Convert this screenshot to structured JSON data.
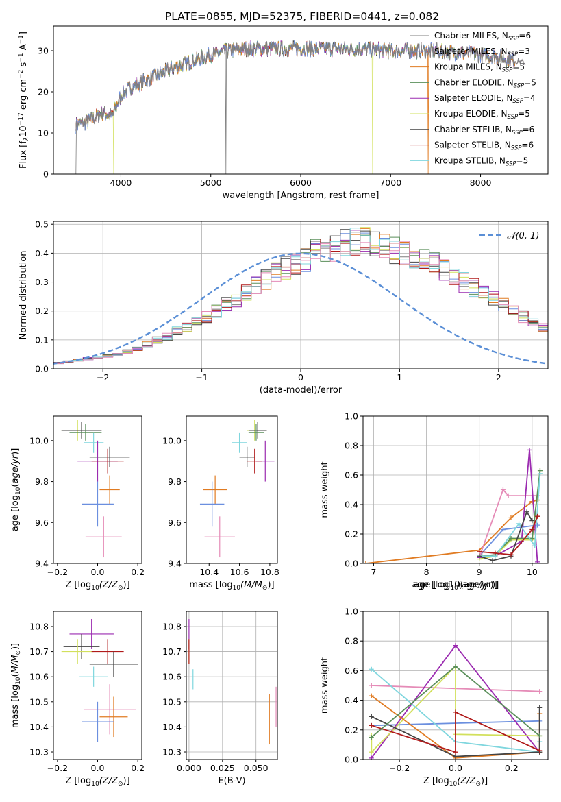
{
  "figure_title": "PLATE=0855, MJD=52375, FIBERID=0441, z=0.082",
  "colors": {
    "Chabrier MILES": "#7f7f7f",
    "Salpeter MILES": "#6b8fdf",
    "Kroupa MILES": "#e07b22",
    "Chabrier ELODIE": "#5a8f5a",
    "Salpeter ELODIE": "#9b2bb0",
    "Kroupa ELODIE": "#d2e05c",
    "Chabrier STELIB": "#444444",
    "Salpeter STELIB": "#b01a1a",
    "Kroupa STELIB": "#7fd6de",
    "pink": "#e58bb7",
    "gauss": "#5b8fd6"
  },
  "chart_data": [
    {
      "id": "spectrum",
      "type": "line",
      "xlabel": "wavelength [Angstrom, rest frame]",
      "ylabel": "Flux [f$_\\lambda$10$^{-17}$ erg cm$^{-2}$ s$^{-1}$ A$^{-1}$]",
      "ylabel_parts": [
        "Flux [f",
        "λ",
        "10",
        "−17",
        " erg cm",
        "−2",
        " s",
        "−1",
        " A",
        "−1",
        "]"
      ],
      "xlim": [
        3250,
        8750
      ],
      "ylim": [
        0,
        36
      ],
      "xticks": [
        4000,
        5000,
        6000,
        7000,
        8000
      ],
      "yticks": [
        0,
        10,
        20,
        30
      ],
      "legend_position": "upper-right",
      "legend": [
        {
          "name": "Chabrier MILES",
          "nssp": "6"
        },
        {
          "name": "Salpeter MILES",
          "nssp": "3"
        },
        {
          "name": "Kroupa MILES",
          "nssp": "5"
        },
        {
          "name": "Chabrier ELODIE",
          "nssp": "5"
        },
        {
          "name": "Salpeter ELODIE",
          "nssp": "4"
        },
        {
          "name": "Kroupa ELODIE",
          "nssp": "5"
        },
        {
          "name": "Chabrier STELIB",
          "nssp": "6"
        },
        {
          "name": "Salpeter STELIB",
          "nssp": "6"
        },
        {
          "name": "Kroupa STELIB",
          "nssp": "5"
        }
      ],
      "continuum_x": [
        3500,
        3600,
        3700,
        3800,
        3900,
        4000,
        4100,
        4200,
        4300,
        4400,
        4600,
        4800,
        5000,
        5200,
        5400,
        5600,
        5800,
        6000,
        6200,
        6400,
        6600,
        6800,
        7000,
        7200,
        7400,
        7600,
        7800,
        8000,
        8200,
        8400,
        8500
      ],
      "continuum_y": [
        12,
        12.5,
        13.5,
        15,
        14,
        19,
        21,
        22,
        23,
        24,
        26,
        27.5,
        29,
        30,
        30.5,
        30.5,
        30.5,
        30.5,
        30.5,
        30.5,
        30.5,
        30.3,
        30,
        30,
        30,
        29.8,
        29.5,
        29,
        28.5,
        27.5,
        27
      ],
      "noise_amplitude": 1.6,
      "dropouts": [
        {
          "x": 3500,
          "series": "Chabrier MILES"
        },
        {
          "x": 3920,
          "series": "Kroupa ELODIE"
        },
        {
          "x": 5170,
          "series": "Chabrier MILES"
        },
        {
          "x": 6800,
          "series": "Kroupa ELODIE"
        },
        {
          "x": 7420,
          "series": "Kroupa MILES"
        }
      ]
    },
    {
      "id": "residual-hist",
      "type": "bar",
      "xlabel": "(data-model)/error",
      "ylabel": "Normed distribution",
      "xlim": [
        -2.5,
        2.5
      ],
      "ylim": [
        0,
        0.51
      ],
      "xticks": [
        -2,
        -1,
        0,
        1,
        2
      ],
      "yticks": [
        0.0,
        0.1,
        0.2,
        0.3,
        0.4,
        0.5
      ],
      "legend_label": "𝒩(0, 1)",
      "bin_width": 0.1,
      "bin_start": -2.5,
      "envelope": [
        0.02,
        0.025,
        0.03,
        0.035,
        0.04,
        0.045,
        0.05,
        0.06,
        0.07,
        0.085,
        0.1,
        0.11,
        0.13,
        0.145,
        0.165,
        0.18,
        0.2,
        0.22,
        0.24,
        0.26,
        0.29,
        0.31,
        0.33,
        0.35,
        0.36,
        0.38,
        0.4,
        0.41,
        0.42,
        0.44,
        0.44,
        0.44,
        0.43,
        0.42,
        0.41,
        0.4,
        0.39,
        0.37,
        0.36,
        0.34,
        0.32,
        0.3,
        0.28,
        0.26,
        0.24,
        0.22,
        0.2,
        0.18,
        0.16,
        0.14,
        0.12,
        0.11,
        0.09,
        0.08,
        0.07,
        0.06,
        0.05,
        0.045,
        0.04,
        0.035
      ],
      "gauss": {
        "mean": 0,
        "sigma": 1
      }
    },
    {
      "id": "z-age",
      "type": "scatter",
      "xlabel_prefix": "Z [log",
      "xlabel_sub": "10",
      "xlabel_mid": "(Z/Z",
      "xlabel_sub2": "⊙",
      "xlabel_suffix": ")]",
      "ylabel": "age  [log10(age/yr)]",
      "xlim": [
        -0.22,
        0.22
      ],
      "ylim": [
        9.4,
        10.12
      ],
      "xticks": [
        -0.2,
        0.0,
        0.2
      ],
      "yticks": [
        9.4,
        9.6,
        9.8,
        10.0
      ],
      "points": [
        {
          "series": "Kroupa ELODIE",
          "x": -0.1,
          "xerr": 0.08,
          "y": 10.05,
          "yerr": 0.05
        },
        {
          "series": "Chabrier STELIB",
          "x": -0.08,
          "xerr": 0.1,
          "y": 10.05,
          "yerr": 0.04
        },
        {
          "series": "Chabrier ELODIE",
          "x": -0.06,
          "xerr": 0.08,
          "y": 10.04,
          "yerr": 0.04
        },
        {
          "series": "Kroupa STELIB",
          "x": -0.02,
          "xerr": 0.05,
          "y": 9.99,
          "yerr": 0.05
        },
        {
          "series": "Chabrier STELIB",
          "x": 0.06,
          "xerr": 0.1,
          "y": 9.92,
          "yerr": 0.05
        },
        {
          "series": "Salpeter ELODIE",
          "x": 0.0,
          "xerr": 0.1,
          "y": 9.9,
          "yerr": 0.1
        },
        {
          "series": "Salpeter STELIB",
          "x": 0.05,
          "xerr": 0.08,
          "y": 9.9,
          "yerr": 0.06
        },
        {
          "series": "Kroupa MILES",
          "x": 0.06,
          "xerr": 0.05,
          "y": 9.76,
          "yerr": 0.07
        },
        {
          "series": "Salpeter MILES",
          "x": 0.0,
          "xerr": 0.08,
          "y": 9.69,
          "yerr": 0.11
        },
        {
          "series": "pink",
          "x": 0.03,
          "xerr": 0.09,
          "y": 9.53,
          "yerr": 0.1
        }
      ]
    },
    {
      "id": "mass-age",
      "type": "scatter",
      "xlabel_prefix": "mass [log",
      "xlabel_sub": "10",
      "xlabel_mid": "(M/M",
      "xlabel_sub2": "⊙",
      "xlabel_suffix": ")]",
      "xlim": [
        10.25,
        10.85
      ],
      "ylim": [
        9.4,
        10.12
      ],
      "xticks": [
        10.4,
        10.6,
        10.8
      ],
      "yticks": [
        9.4,
        9.6,
        9.8,
        10.0
      ],
      "points": [
        {
          "series": "Kroupa ELODIE",
          "x": 10.7,
          "xerr": 0.05,
          "y": 10.05,
          "yerr": 0.05
        },
        {
          "series": "Chabrier STELIB",
          "x": 10.72,
          "xerr": 0.06,
          "y": 10.05,
          "yerr": 0.04
        },
        {
          "series": "Chabrier ELODIE",
          "x": 10.71,
          "xerr": 0.05,
          "y": 10.04,
          "yerr": 0.04
        },
        {
          "series": "Kroupa STELIB",
          "x": 10.6,
          "xerr": 0.05,
          "y": 9.99,
          "yerr": 0.05
        },
        {
          "series": "Chabrier STELIB",
          "x": 10.65,
          "xerr": 0.05,
          "y": 9.92,
          "yerr": 0.05
        },
        {
          "series": "Salpeter ELODIE",
          "x": 10.77,
          "xerr": 0.06,
          "y": 9.9,
          "yerr": 0.1
        },
        {
          "series": "Salpeter STELIB",
          "x": 10.7,
          "xerr": 0.05,
          "y": 9.9,
          "yerr": 0.06
        },
        {
          "series": "Kroupa MILES",
          "x": 10.44,
          "xerr": 0.08,
          "y": 9.76,
          "yerr": 0.07
        },
        {
          "series": "Salpeter MILES",
          "x": 10.42,
          "xerr": 0.08,
          "y": 9.69,
          "yerr": 0.11
        },
        {
          "series": "pink",
          "x": 10.47,
          "xerr": 0.1,
          "y": 9.53,
          "yerr": 0.1
        }
      ]
    },
    {
      "id": "age-weight",
      "type": "line",
      "xlabel": "age  [log10(age/yr)]",
      "ylabel": "mass weight",
      "xlim": [
        6.8,
        10.3
      ],
      "ylim": [
        0,
        1.0
      ],
      "xticks": [
        7,
        8,
        9,
        10
      ],
      "yticks": [
        0.0,
        0.2,
        0.4,
        0.6,
        0.8,
        1.0
      ],
      "series": [
        {
          "name": "Kroupa MILES",
          "x": [
            6.85,
            9.0,
            9.6,
            10.0,
            10.1
          ],
          "y": [
            0.0,
            0.09,
            0.31,
            0.42,
            0.43
          ]
        },
        {
          "name": "Salpeter MILES",
          "x": [
            9.0,
            9.45,
            10.1
          ],
          "y": [
            0.05,
            0.23,
            0.26
          ]
        },
        {
          "name": "pink",
          "x": [
            9.0,
            9.45,
            9.55,
            10.1
          ],
          "y": [
            0.04,
            0.5,
            0.46,
            0.46
          ]
        },
        {
          "name": "Salpeter ELODIE",
          "x": [
            9.0,
            9.3,
            9.8,
            9.95,
            10.1
          ],
          "y": [
            0.04,
            0.05,
            0.15,
            0.77,
            0.01
          ]
        },
        {
          "name": "Kroupa ELODIE",
          "x": [
            9.0,
            9.3,
            9.6,
            10.0,
            10.15
          ],
          "y": [
            0.03,
            0.05,
            0.16,
            0.16,
            0.63
          ]
        },
        {
          "name": "Chabrier ELODIE",
          "x": [
            9.05,
            9.3,
            9.6,
            10.0,
            10.15
          ],
          "y": [
            0.05,
            0.06,
            0.17,
            0.17,
            0.63
          ]
        },
        {
          "name": "Kroupa STELIB",
          "x": [
            9.0,
            9.3,
            9.75,
            10.05,
            10.15
          ],
          "y": [
            0.05,
            0.05,
            0.27,
            0.12,
            0.61
          ]
        },
        {
          "name": "Chabrier STELIB",
          "x": [
            9.0,
            9.25,
            9.6,
            9.9,
            10.0
          ],
          "y": [
            0.05,
            0.02,
            0.05,
            0.35,
            0.29
          ]
        },
        {
          "name": "Salpeter STELIB",
          "x": [
            9.0,
            9.3,
            9.6,
            10.0,
            10.1
          ],
          "y": [
            0.08,
            0.07,
            0.06,
            0.23,
            0.32
          ]
        }
      ]
    },
    {
      "id": "z-mass",
      "type": "scatter",
      "xlabel_prefix": "Z [log",
      "xlabel_sub": "10",
      "xlabel_mid": "(Z/Z",
      "xlabel_sub2": "⊙",
      "xlabel_suffix": ")]",
      "ylabel": "mass [log10(M/M⊙)]",
      "xlim": [
        -0.22,
        0.22
      ],
      "ylim": [
        10.27,
        10.86
      ],
      "xticks": [
        -0.2,
        0.0,
        0.2
      ],
      "yticks": [
        10.3,
        10.4,
        10.5,
        10.6,
        10.7,
        10.8
      ],
      "points": [
        {
          "series": "Salpeter ELODIE",
          "x": -0.03,
          "xerr": 0.11,
          "y": 10.77,
          "yerr": 0.06
        },
        {
          "series": "Chabrier STELIB",
          "x": -0.08,
          "xerr": 0.09,
          "y": 10.72,
          "yerr": 0.05
        },
        {
          "series": "Kroupa ELODIE",
          "x": -0.1,
          "xerr": 0.08,
          "y": 10.7,
          "yerr": 0.05
        },
        {
          "series": "Salpeter STELIB",
          "x": 0.05,
          "xerr": 0.08,
          "y": 10.7,
          "yerr": 0.05
        },
        {
          "series": "Chabrier STELIB",
          "x": 0.08,
          "xerr": 0.12,
          "y": 10.65,
          "yerr": 0.05
        },
        {
          "series": "Kroupa STELIB",
          "x": -0.02,
          "xerr": 0.07,
          "y": 10.6,
          "yerr": 0.04
        },
        {
          "series": "pink",
          "x": 0.06,
          "xerr": 0.13,
          "y": 10.47,
          "yerr": 0.1
        },
        {
          "series": "Kroupa MILES",
          "x": 0.08,
          "xerr": 0.07,
          "y": 10.44,
          "yerr": 0.08
        },
        {
          "series": "Salpeter MILES",
          "x": 0.0,
          "xerr": 0.08,
          "y": 10.42,
          "yerr": 0.08
        }
      ]
    },
    {
      "id": "ebv-mass",
      "type": "scatter",
      "xlabel": "E(B-V)",
      "xlim": [
        -0.002,
        0.066
      ],
      "ylim": [
        10.27,
        10.86
      ],
      "xticks": [
        0.0,
        0.025,
        0.05
      ],
      "xtick_labels": [
        "0.000",
        "0.025",
        "0.050"
      ],
      "yticks": [
        10.3,
        10.4,
        10.5,
        10.6,
        10.7,
        10.8
      ],
      "points": [
        {
          "series": "Salpeter ELODIE",
          "x": 0.0,
          "y": 10.77,
          "yerr": 0.06
        },
        {
          "series": "Kroupa ELODIE",
          "x": 0.0,
          "y": 10.7,
          "yerr": 0.05
        },
        {
          "series": "Salpeter STELIB",
          "x": 0.0,
          "y": 10.7,
          "yerr": 0.05
        },
        {
          "series": "Kroupa STELIB",
          "x": 0.003,
          "y": 10.59,
          "yerr": 0.04
        },
        {
          "series": "Kroupa MILES",
          "x": 0.06,
          "y": 10.43,
          "yerr": 0.1
        },
        {
          "series": "pink",
          "x": 0.065,
          "y": 10.48,
          "yerr": 0.08
        }
      ]
    },
    {
      "id": "z-weight",
      "type": "line",
      "xlabel_prefix": "Z [log",
      "xlabel_sub": "10",
      "xlabel_mid": "(Z/Z",
      "xlabel_sub2": "⊙",
      "xlabel_suffix": ")]",
      "ylabel": "mass weight",
      "xlim": [
        -0.33,
        0.33
      ],
      "ylim": [
        0,
        1.0
      ],
      "xticks": [
        -0.2,
        0.0,
        0.2
      ],
      "yticks": [
        0.0,
        0.2,
        0.4,
        0.6,
        0.8,
        1.0
      ],
      "series": [
        {
          "name": "Salpeter MILES",
          "x": [
            -0.3,
            0.3
          ],
          "y": [
            0.23,
            0.26
          ]
        },
        {
          "name": "pink",
          "x": [
            -0.3,
            0.3
          ],
          "y": [
            0.5,
            0.46
          ]
        },
        {
          "name": "Salpeter ELODIE",
          "x": [
            -0.3,
            0.0,
            0.3
          ],
          "y": [
            0.01,
            0.77,
            0.05
          ]
        },
        {
          "name": "Kroupa ELODIE",
          "x": [
            -0.3,
            -0.3,
            0.0,
            0.0,
            0.3
          ],
          "y": [
            0.16,
            0.05,
            0.63,
            0.17,
            0.16
          ]
        },
        {
          "name": "Kroupa STELIB",
          "x": [
            -0.3,
            0.0,
            0.3,
            0.3
          ],
          "y": [
            0.61,
            0.12,
            0.05,
            0.12
          ]
        },
        {
          "name": "Kroupa MILES",
          "x": [
            -0.3,
            0.0,
            0.3,
            0.3
          ],
          "y": [
            0.43,
            0.01,
            0.05,
            0.31
          ]
        },
        {
          "name": "Chabrier STELIB",
          "x": [
            -0.3,
            0.0,
            0.3,
            0.3
          ],
          "y": [
            0.29,
            0.02,
            0.05,
            0.35
          ]
        },
        {
          "name": "Salpeter STELIB",
          "x": [
            -0.3,
            0.0,
            0.0,
            0.3
          ],
          "y": [
            0.23,
            0.05,
            0.32,
            0.06
          ]
        },
        {
          "name": "Chabrier ELODIE",
          "x": [
            -0.3,
            0.0,
            0.3
          ],
          "y": [
            0.15,
            0.63,
            0.16
          ]
        }
      ]
    }
  ]
}
